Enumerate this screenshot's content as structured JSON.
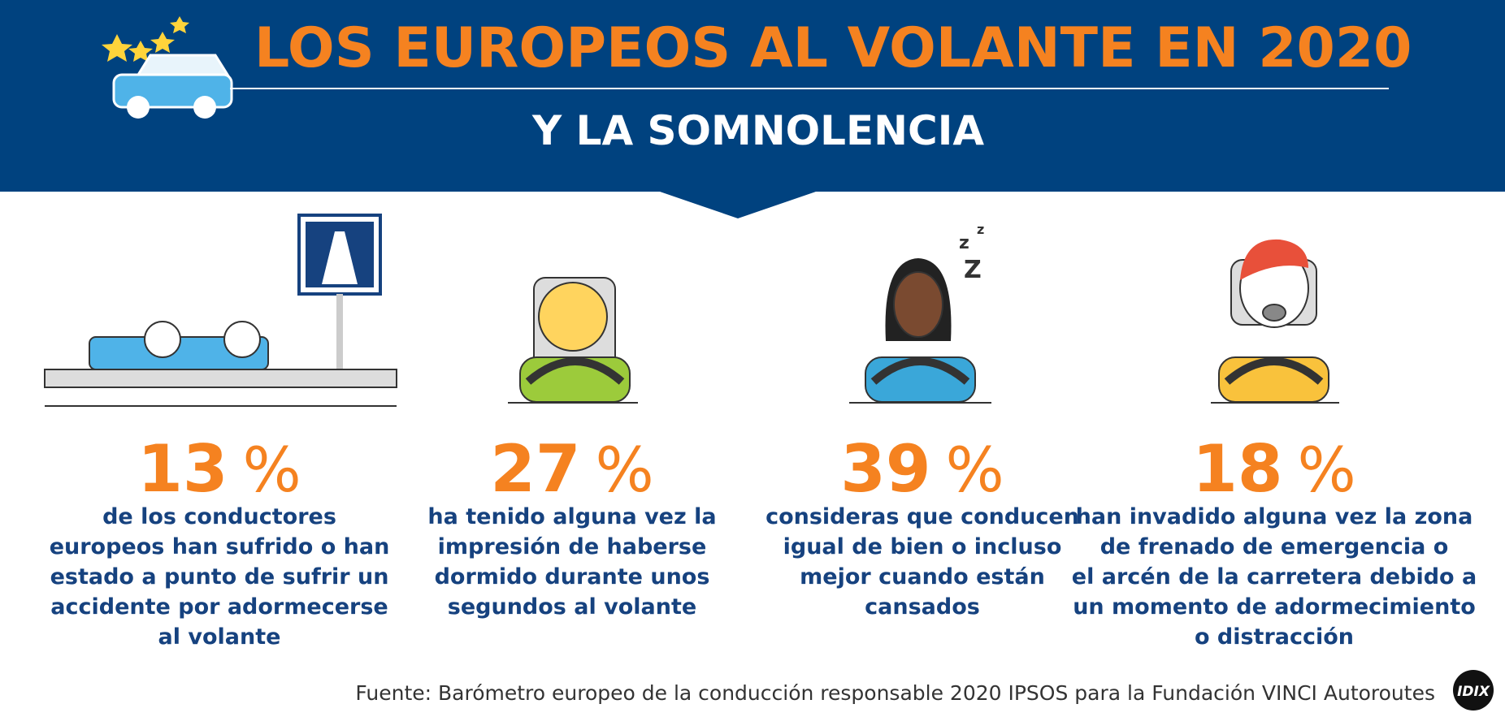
{
  "header": {
    "title": "LOS EUROPEOS AL VOLANTE EN 2020",
    "subtitle": "Y LA SOMNOLENCIA"
  },
  "stats": [
    {
      "value": 13,
      "unit": "%",
      "lines": [
        "de los conductores",
        "europeos han sufrido o han",
        "estado a punto de sufrir un",
        "accidente por adormecerse",
        "al volante"
      ]
    },
    {
      "value": 27,
      "unit": "%",
      "lines": [
        "ha tenido alguna vez la",
        "impresión de haberse",
        "dormido durante unos",
        "segundos al volante"
      ]
    },
    {
      "value": 39,
      "unit": "%",
      "lines": [
        "consideras que conducen",
        "igual de bien o incluso",
        "mejor cuando están",
        "cansados"
      ]
    },
    {
      "value": 18,
      "unit": "%",
      "lines": [
        "han invadido alguna vez la zona",
        "de frenado de emergencia o",
        "el arcén de la carretera debido a",
        "un momento de adormecimiento",
        "o distracción"
      ]
    }
  ],
  "footer": {
    "source": "Fuente: Barómetro europeo de la conducción responsable 2020 IPSOS para la Fundación VINCI Autoroutes",
    "logo": "IDIX"
  }
}
